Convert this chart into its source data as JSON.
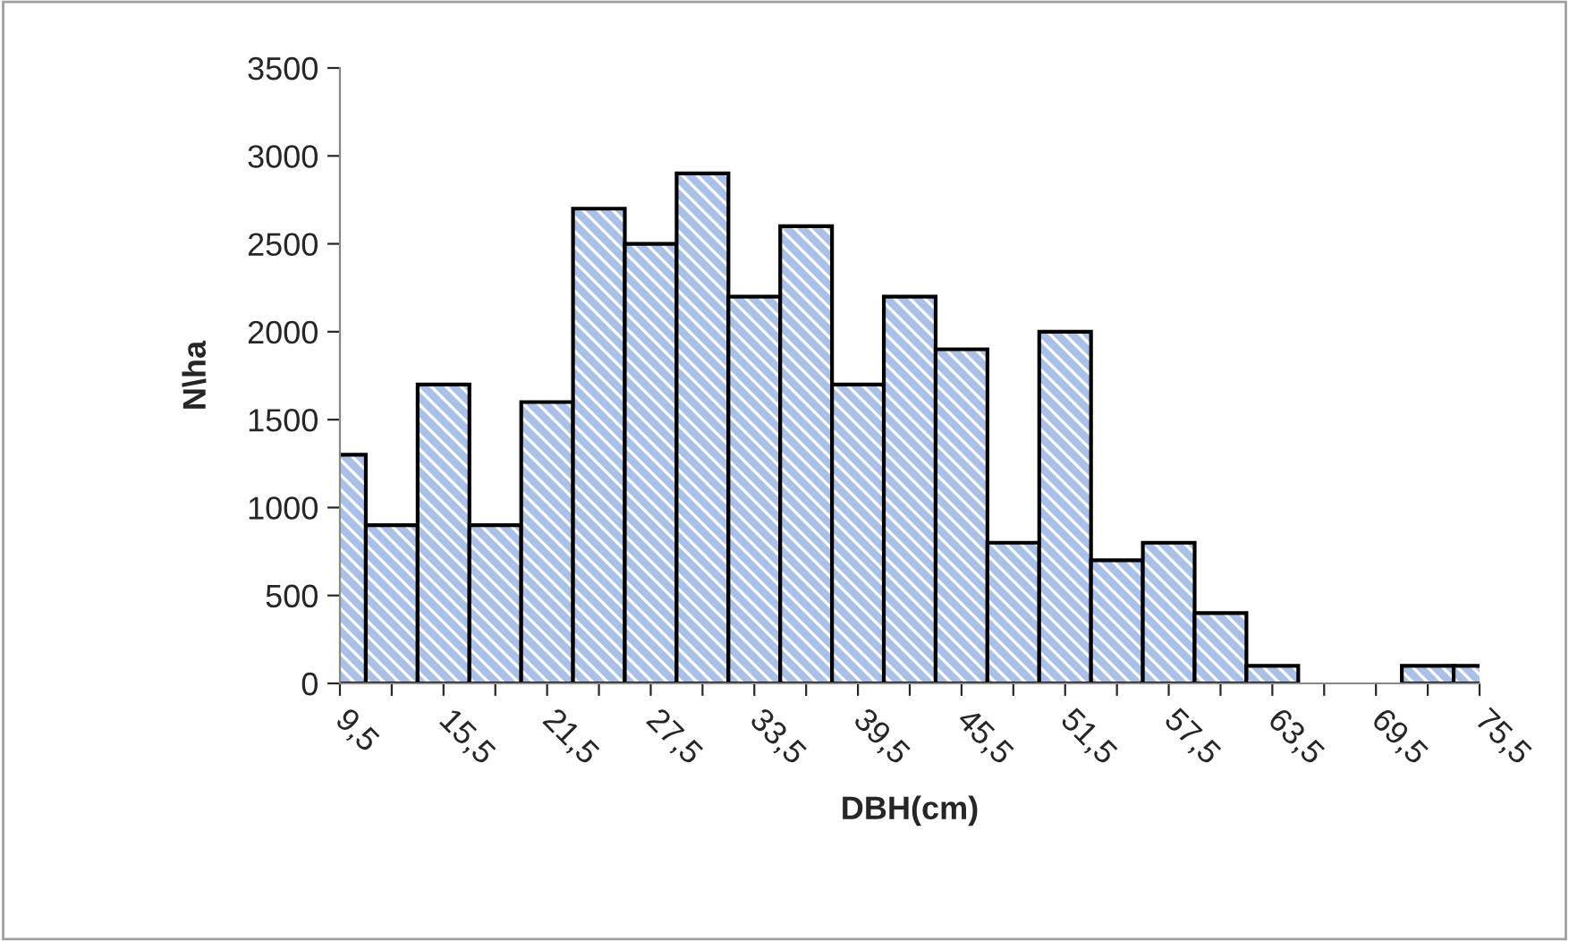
{
  "chart_data": {
    "type": "bar",
    "xlabel": "DBH(cm)",
    "ylabel": "N\\ha",
    "categories": [
      "9,5",
      null,
      "15,5",
      null,
      "21,5",
      null,
      "27,5",
      null,
      "33,5",
      null,
      "39,5",
      null,
      "45,5",
      null,
      "51,5",
      null,
      "57,5",
      null,
      "63,5",
      null,
      "69,5",
      null,
      "75,5"
    ],
    "series": [
      {
        "color": "#a9c0e8",
        "values": [
          1300,
          900,
          1700,
          900,
          1600,
          2700,
          2500,
          2900,
          2200,
          2600,
          1700,
          2200,
          1900,
          800,
          2000,
          700,
          800,
          400,
          100,
          0,
          0,
          100,
          100
        ]
      }
    ],
    "ylim": [
      0,
      3500
    ],
    "yticks": [
      0,
      500,
      1000,
      1500,
      2000,
      2500,
      3000,
      3500
    ],
    "grid": false,
    "legend": false
  }
}
